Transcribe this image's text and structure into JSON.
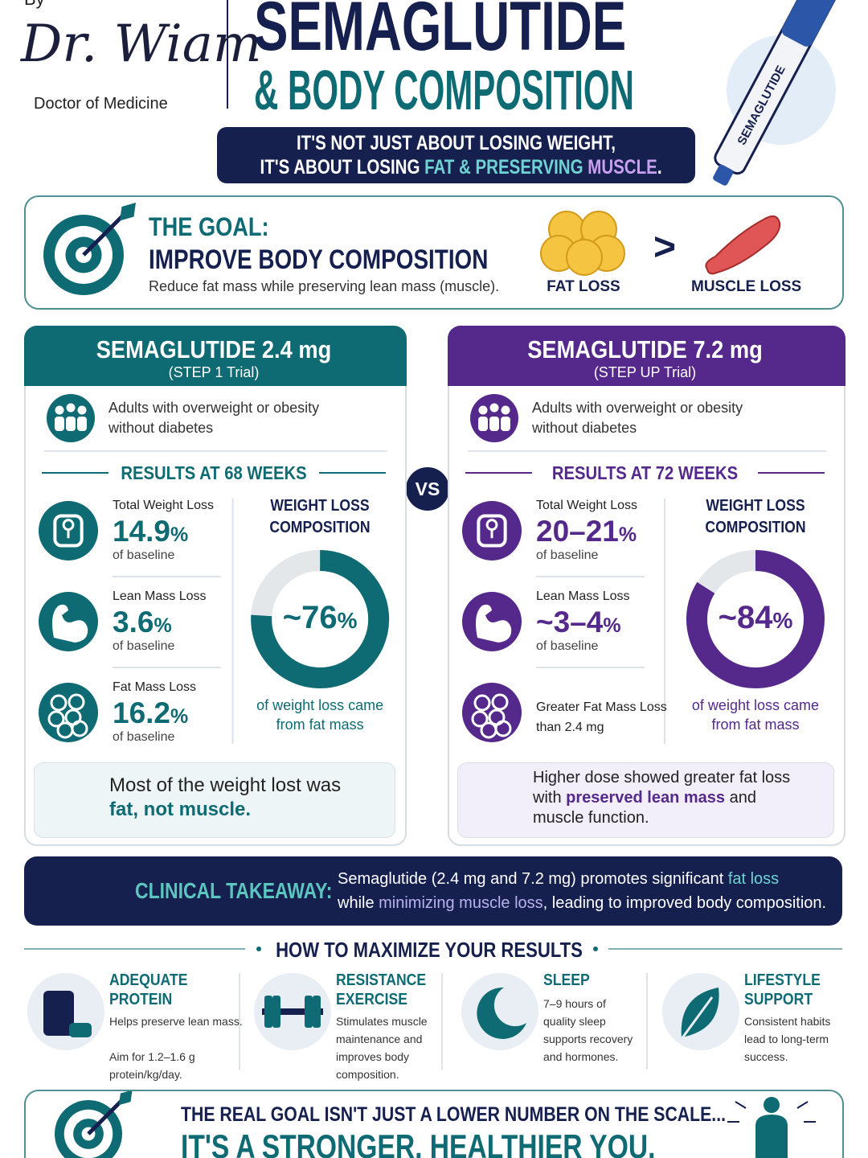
{
  "header": {
    "by": "By",
    "signature": "Dr. Wiam",
    "credential": "Doctor of Medicine",
    "title_line1": "SEMAGLUTIDE",
    "title_line2": "& BODY COMPOSITION",
    "tagline_line1": "IT'S NOT JUST ABOUT LOSING WEIGHT,",
    "tagline_line2": [
      "IT'S ABOUT LOSING ",
      "FAT & PRESERVING ",
      "MUSCLE",
      "."
    ],
    "pen_label": "SEMAGLUTIDE"
  },
  "goal": {
    "title1": "THE GOAL:",
    "title2": "IMPROVE BODY COMPOSITION",
    "desc": "Reduce fat mass while preserving lean mass (muscle).",
    "fat_label": "FAT LOSS",
    "comparator": ">",
    "muscle_label": "MUSCLE LOSS"
  },
  "vs": "VS",
  "trials": [
    {
      "name": "SEMAGLUTIDE 2.4 mg",
      "trial": "(STEP 1 Trial)",
      "population": [
        "Adults with overweight or obesity",
        "without diabetes"
      ],
      "results_heading": "RESULTS AT 68 WEEKS",
      "metrics": [
        {
          "label": [
            "Total Weight Loss"
          ],
          "value": "14.9",
          "unit": "%",
          "note": "of baseline"
        },
        {
          "label": [
            "Lean Mass Loss"
          ],
          "value": "3.6",
          "unit": "%",
          "note": "of baseline"
        },
        {
          "label": [
            "Fat Mass Loss"
          ],
          "value": "16.2",
          "unit": "%",
          "note": "of baseline"
        }
      ],
      "composition_title": [
        "WEIGHT LOSS",
        "COMPOSITION"
      ],
      "donut": {
        "value": 76,
        "label": "~76",
        "unit": "%"
      },
      "donut_caption": [
        "of weight loss came",
        "from fat mass"
      ],
      "summary": [
        [
          {
            "text": "Most of the weight lost was",
            "emphasis": false
          }
        ],
        [
          {
            "text": "fat, not muscle.",
            "emphasis": true
          }
        ]
      ]
    },
    {
      "name": "SEMAGLUTIDE 7.2 mg",
      "trial": "(STEP UP Trial)",
      "population": [
        "Adults with overweight or obesity",
        "without diabetes"
      ],
      "results_heading": "RESULTS AT 72 WEEKS",
      "metrics": [
        {
          "label": [
            "Total Weight Loss"
          ],
          "value": "20–21",
          "unit": "%",
          "note": "of baseline"
        },
        {
          "label": [
            "Lean Mass Loss"
          ],
          "value": "~3–4",
          "unit": "%",
          "note": "of baseline"
        },
        {
          "label": [
            "Greater Fat Mass Loss",
            "than 2.4 mg"
          ]
        }
      ],
      "composition_title": [
        "WEIGHT LOSS",
        "COMPOSITION"
      ],
      "donut": {
        "value": 84,
        "label": "~84",
        "unit": "%"
      },
      "donut_caption": [
        "of weight loss came",
        "from fat mass"
      ],
      "summary": [
        [
          {
            "text": "Higher dose showed greater fat loss",
            "emphasis": false
          }
        ],
        [
          {
            "text": "with ",
            "emphasis": false
          },
          {
            "text": "preserved lean mass",
            "emphasis": true
          },
          {
            "text": " and",
            "emphasis": false
          }
        ],
        [
          {
            "text": "muscle function.",
            "emphasis": false
          }
        ]
      ]
    }
  ],
  "takeaway": {
    "title": "CLINICAL TAKEAWAY:",
    "lines": [
      [
        {
          "text": "Semaglutide (2.4 mg and 7.2 mg) promotes significant ",
          "emphasis": false
        },
        {
          "text": "fat loss",
          "emphasis": true
        }
      ],
      [
        {
          "text": "while ",
          "emphasis": false
        },
        {
          "text": "minimizing muscle loss",
          "emphasis": true
        },
        {
          "text": ", leading to improved body composition.",
          "emphasis": false
        }
      ]
    ]
  },
  "tips_heading": "HOW TO MAXIMIZE YOUR RESULTS",
  "tips": [
    {
      "title": [
        "ADEQUATE",
        "PROTEIN"
      ],
      "text": [
        "Helps preserve lean mass.",
        "",
        "Aim for 1.2–1.6 g",
        "protein/kg/day."
      ]
    },
    {
      "title": [
        "RESISTANCE",
        "EXERCISE"
      ],
      "text": [
        "Stimulates muscle",
        "maintenance and",
        "improves body",
        "composition."
      ]
    },
    {
      "title": [
        "SLEEP"
      ],
      "text": [
        "7–9 hours of",
        "quality sleep",
        "supports recovery",
        "and hormones."
      ]
    },
    {
      "title": [
        "LIFESTYLE",
        "SUPPORT"
      ],
      "text": [
        "Consistent habits",
        "lead to long-term",
        "success."
      ]
    }
  ],
  "footer": {
    "line1": "THE REAL GOAL ISN'T JUST A LOWER NUMBER ON THE SCALE...",
    "line2": "IT'S A STRONGER, HEALTHIER YOU."
  }
}
